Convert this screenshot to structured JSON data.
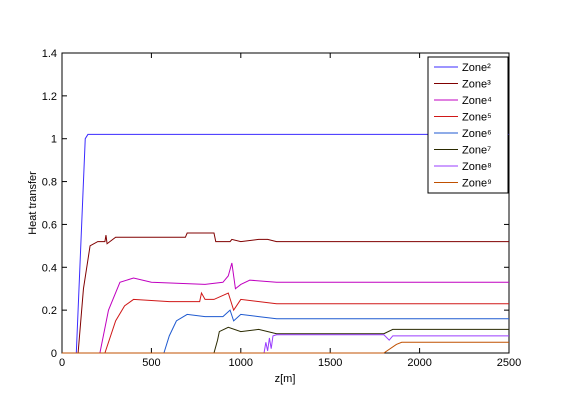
{
  "chart_data": {
    "type": "line",
    "xlabel": "z[m]",
    "ylabel": "Heat transfer",
    "xlim": [
      0,
      2500
    ],
    "xticks": [
      0,
      500,
      1000,
      1500,
      2000,
      2500
    ],
    "ylim": [
      0,
      1.4
    ],
    "yticks": [
      0,
      0.2,
      0.4,
      0.6,
      0.8,
      1,
      1.2,
      1.4
    ],
    "legend": "upper right",
    "series": [
      {
        "name": "Zone²",
        "color": "#3b2bff",
        "x": [
          0,
          80,
          130,
          145,
          2500
        ],
        "values": [
          0,
          0,
          1.0,
          1.02,
          1.02
        ]
      },
      {
        "name": "Zone³",
        "color": "#800000",
        "x": [
          0,
          90,
          120,
          157,
          200,
          240,
          246,
          252,
          300,
          690,
          700,
          850,
          860,
          940,
          950,
          1000,
          1100,
          1150,
          1200,
          2500
        ],
        "values": [
          0,
          0,
          0.3,
          0.5,
          0.52,
          0.52,
          0.55,
          0.51,
          0.54,
          0.54,
          0.56,
          0.56,
          0.52,
          0.52,
          0.53,
          0.52,
          0.53,
          0.53,
          0.52,
          0.52
        ]
      },
      {
        "name": "Zone⁴",
        "color": "#c000c0",
        "x": [
          0,
          212,
          260,
          324,
          400,
          500,
          800,
          900,
          930,
          950,
          970,
          1000,
          1050,
          1200,
          2500
        ],
        "values": [
          0,
          0,
          0.2,
          0.33,
          0.35,
          0.33,
          0.32,
          0.33,
          0.36,
          0.42,
          0.3,
          0.32,
          0.34,
          0.33,
          0.33
        ]
      },
      {
        "name": "Zone⁵",
        "color": "#d01818",
        "x": [
          0,
          240,
          300,
          350,
          400,
          600,
          770,
          780,
          800,
          850,
          930,
          960,
          1000,
          1200,
          2500
        ],
        "values": [
          0,
          0,
          0.15,
          0.22,
          0.25,
          0.24,
          0.24,
          0.28,
          0.25,
          0.25,
          0.28,
          0.2,
          0.25,
          0.23,
          0.23
        ]
      },
      {
        "name": "Zone⁶",
        "color": "#1f5ad0",
        "x": [
          0,
          570,
          600,
          640,
          700,
          800,
          900,
          940,
          960,
          1000,
          1100,
          1200,
          2500
        ],
        "values": [
          0,
          0,
          0.08,
          0.15,
          0.18,
          0.17,
          0.17,
          0.2,
          0.15,
          0.18,
          0.17,
          0.16,
          0.16
        ]
      },
      {
        "name": "Zone⁷",
        "color": "#2a2a00",
        "x": [
          0,
          850,
          870,
          880,
          930,
          1000,
          1100,
          1200,
          1800,
          1850,
          2500
        ],
        "values": [
          0,
          0,
          0.06,
          0.1,
          0.12,
          0.1,
          0.11,
          0.09,
          0.09,
          0.11,
          0.11
        ]
      },
      {
        "name": "Zone⁸",
        "color": "#9a3cff",
        "x": [
          1130,
          1140,
          1150,
          1160,
          1170,
          1180,
          1200,
          1800,
          1830,
          1850,
          2500
        ],
        "values": [
          0,
          0.05,
          0.01,
          0.07,
          0.02,
          0.08,
          0.085,
          0.085,
          0.06,
          0.08,
          0.08
        ]
      },
      {
        "name": "Zone⁹",
        "color": "#c05000",
        "x": [
          0,
          1800,
          1870,
          1900,
          2500
        ],
        "values": [
          0,
          0,
          0.04,
          0.05,
          0.05
        ]
      }
    ]
  }
}
